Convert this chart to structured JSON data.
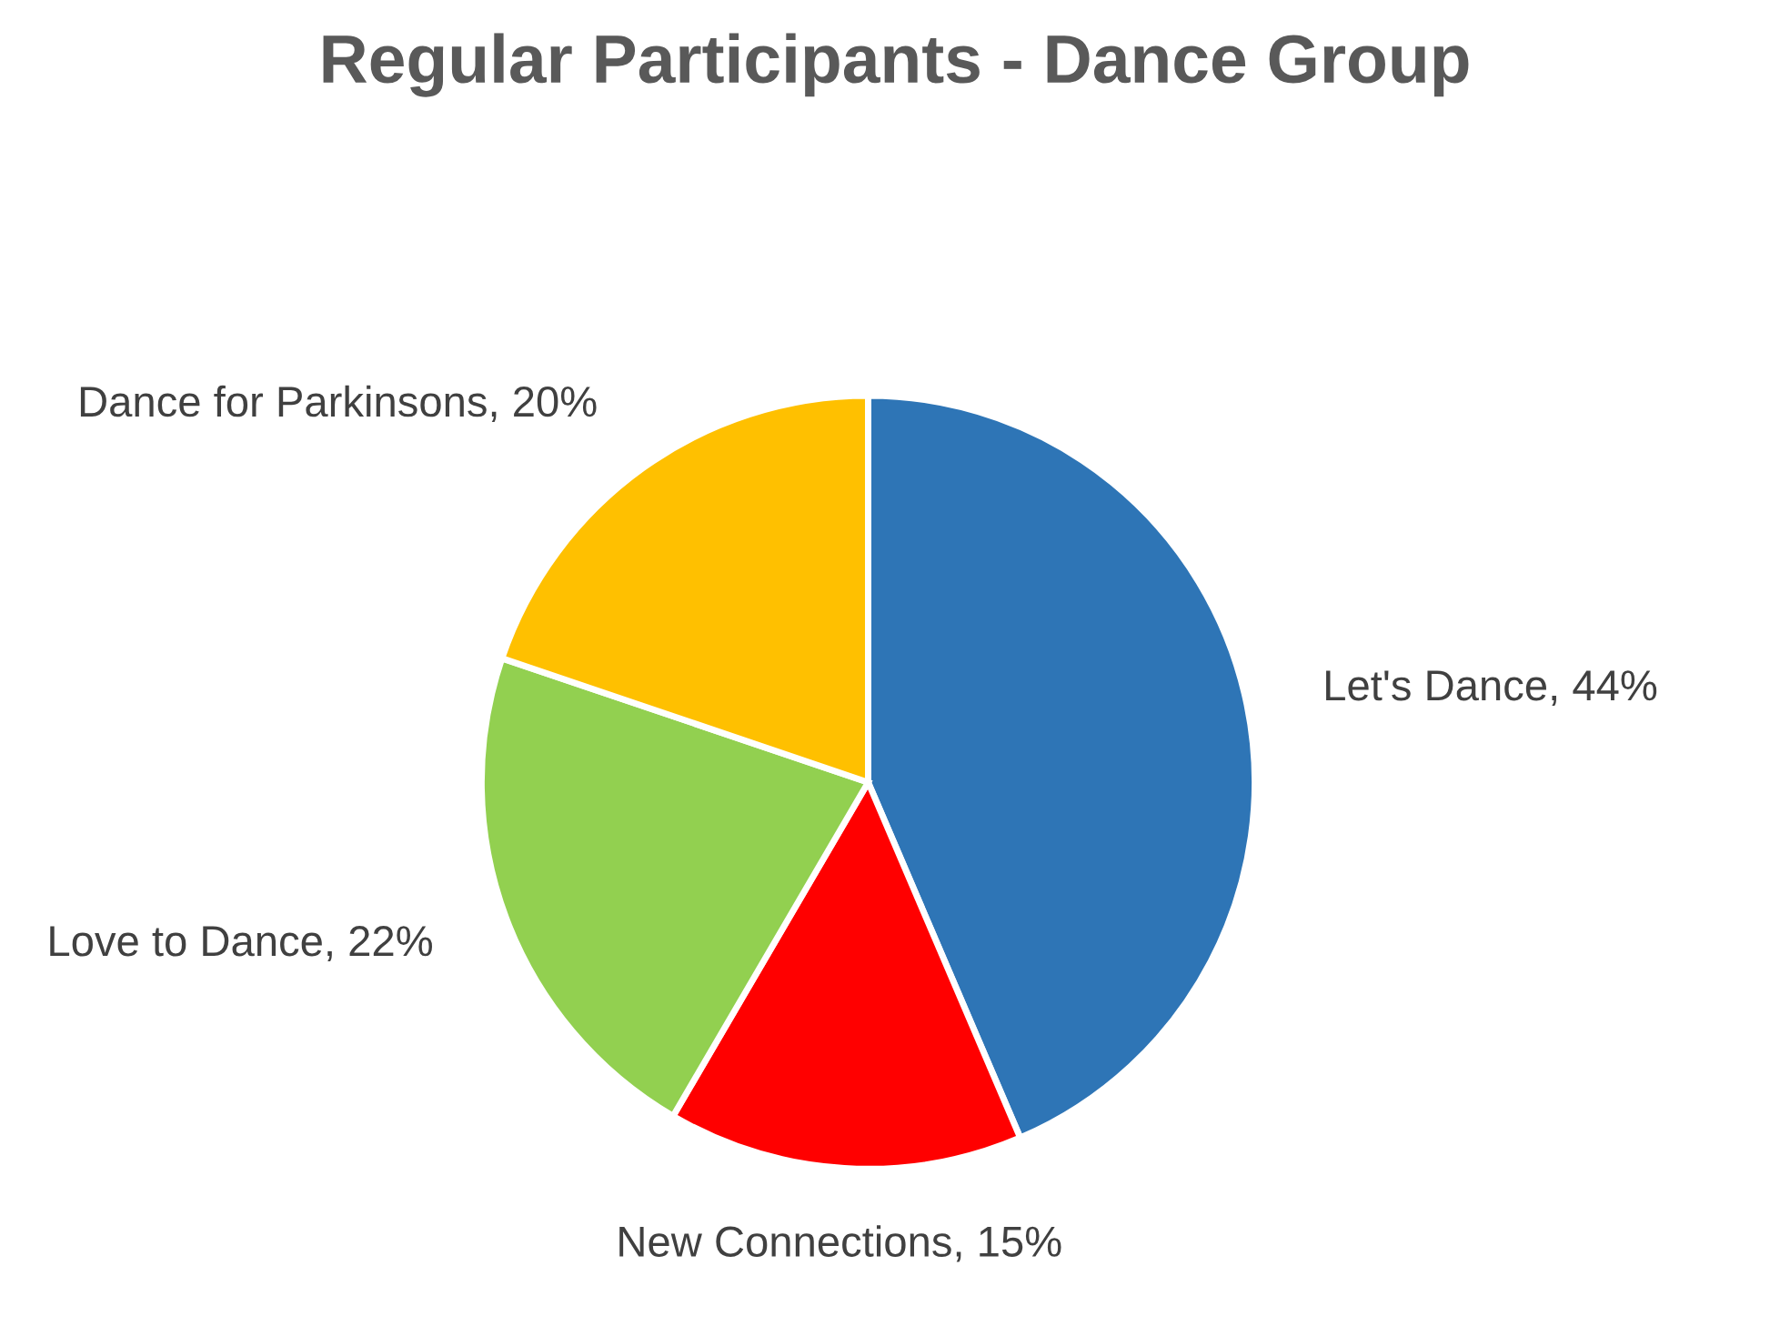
{
  "chart_data": {
    "type": "pie",
    "title": "Regular Participants - Dance Group",
    "categories": [
      "Let's Dance",
      "New Connections",
      "Love to Dance",
      "Dance for Parkinsons"
    ],
    "values": [
      44,
      15,
      22,
      20
    ],
    "value_labels": [
      "44%",
      "15%",
      "22%",
      "20%"
    ],
    "colors": [
      "#2e75b6",
      "#ff0000",
      "#92d050",
      "#ffc000"
    ],
    "legend": false
  }
}
